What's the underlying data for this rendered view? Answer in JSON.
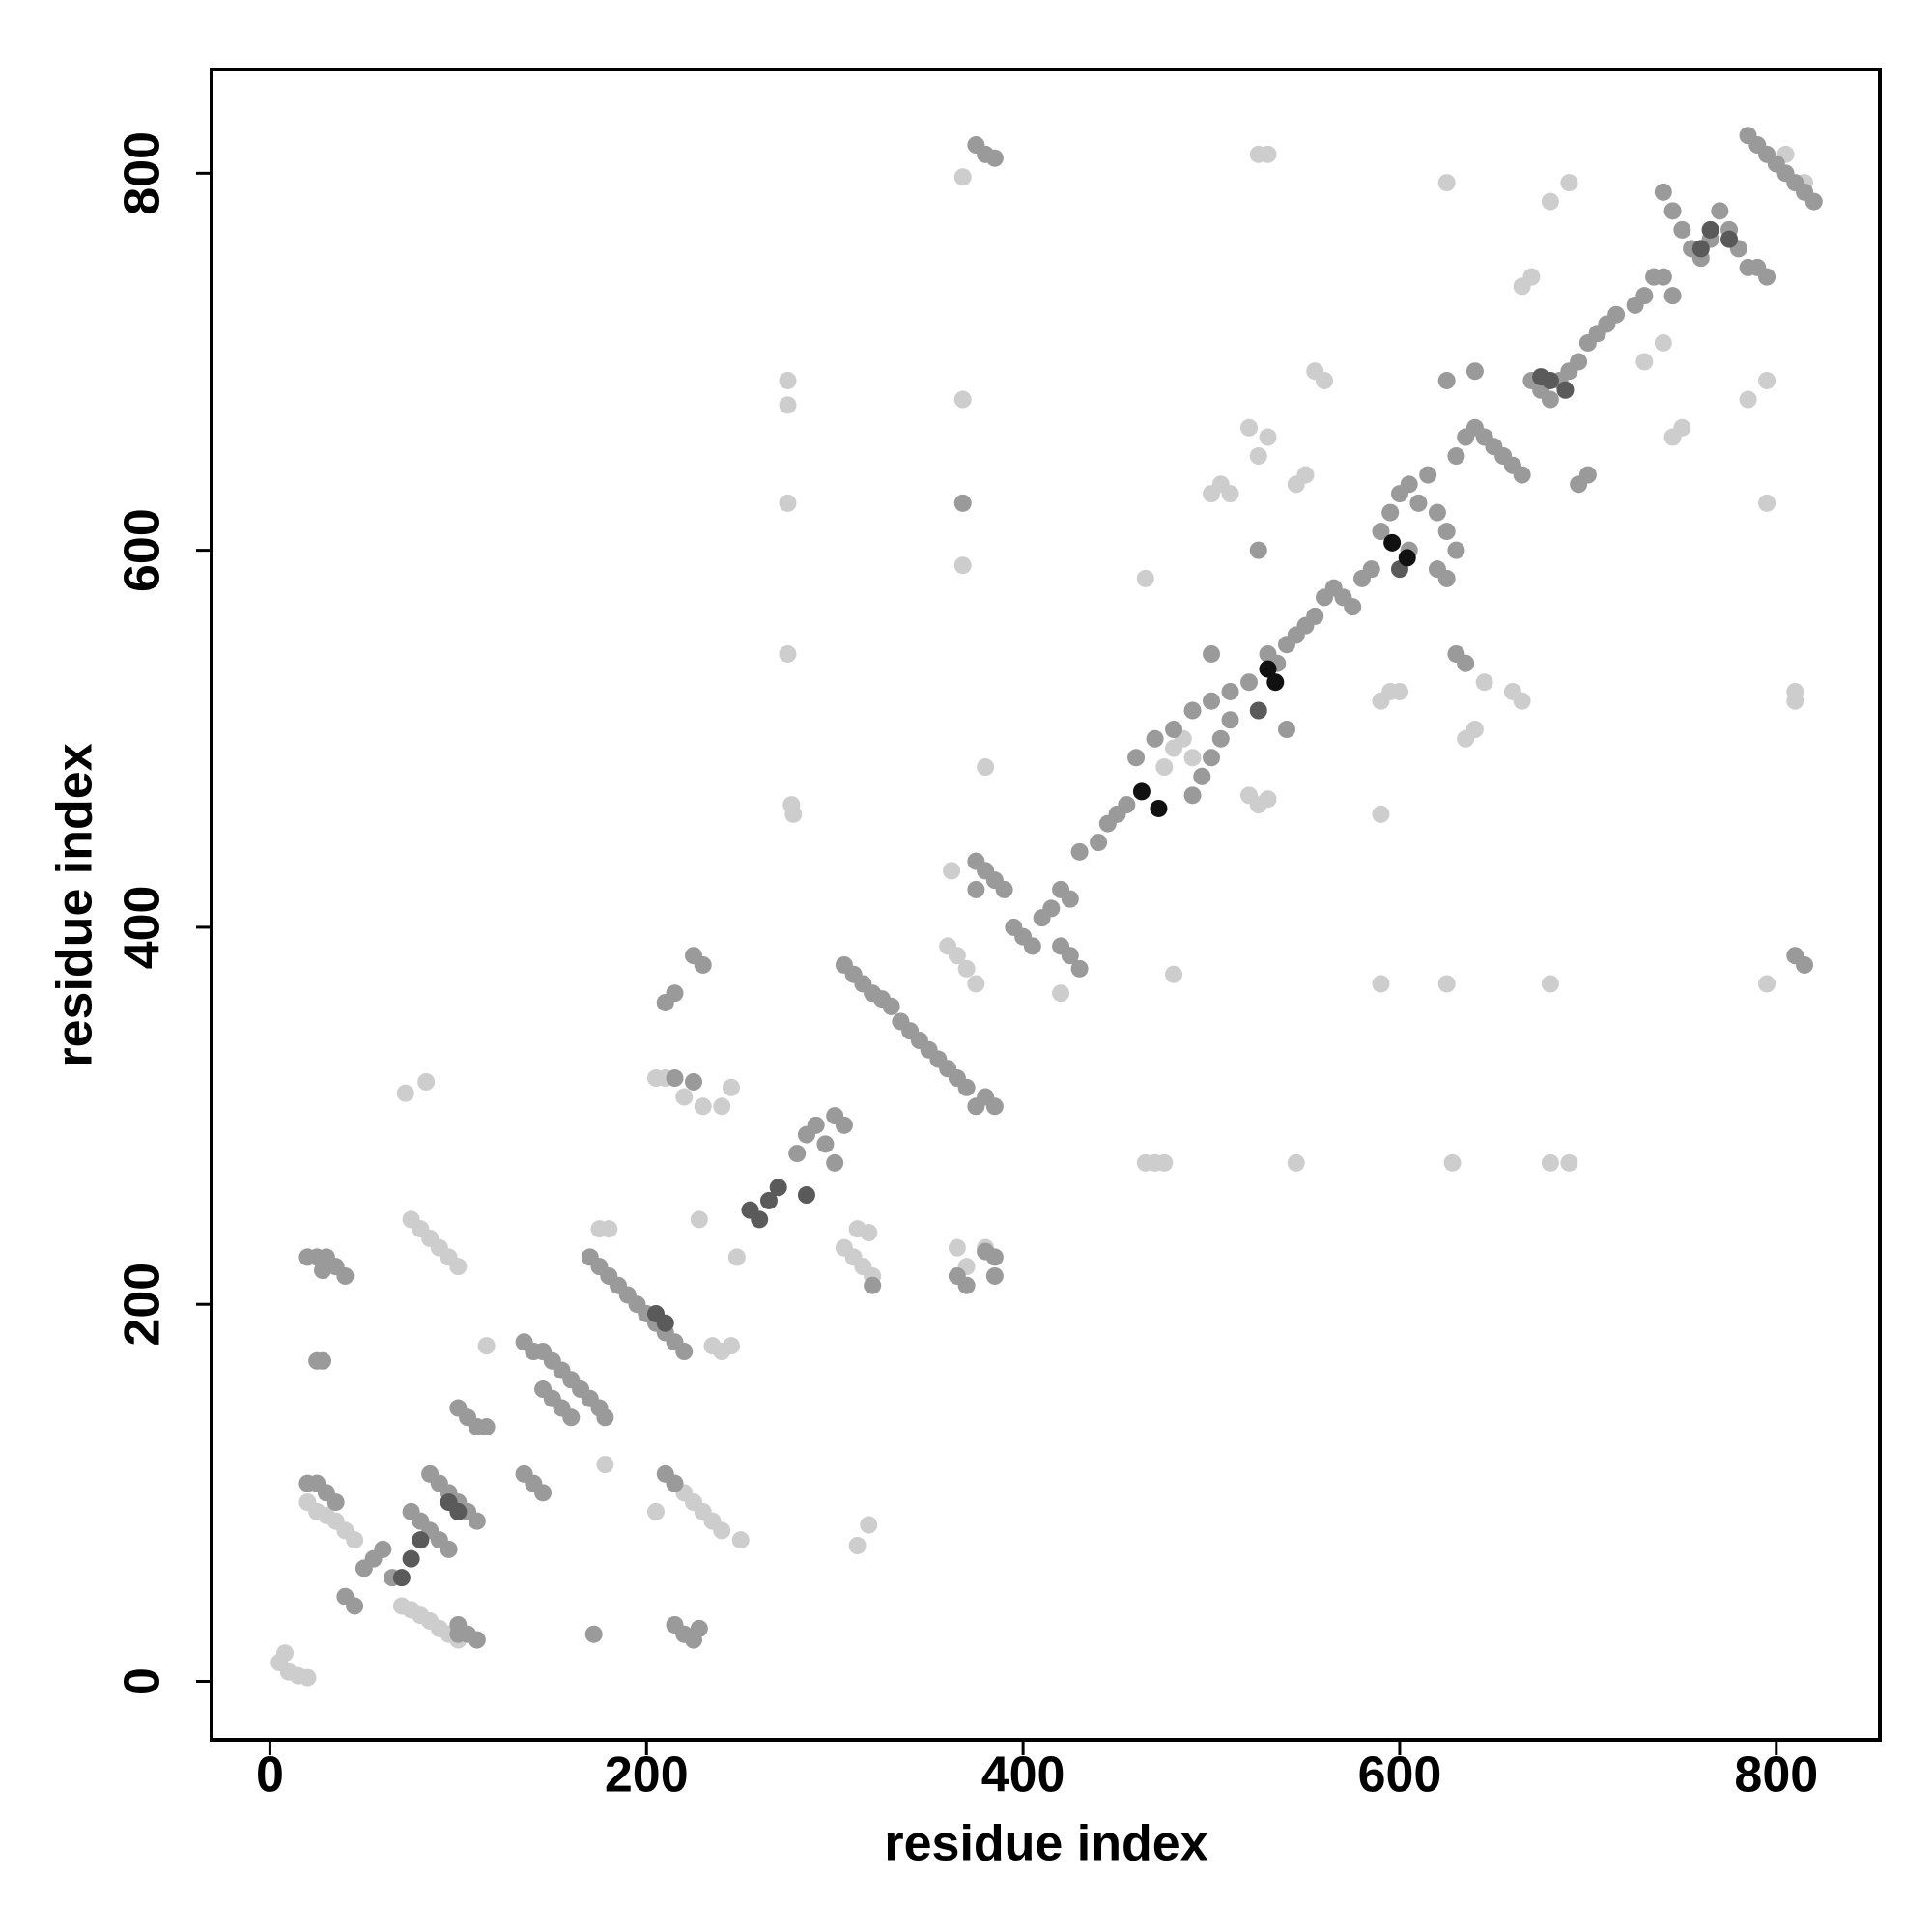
{
  "chart_data": {
    "type": "scatter",
    "x_label": "residue index",
    "y_label": "residue index",
    "xlim": [
      -31,
      855
    ],
    "ylim": [
      -31,
      855
    ],
    "xticks": [
      0,
      200,
      400,
      600,
      800
    ],
    "yticks": [
      0,
      200,
      400,
      600,
      800
    ],
    "grid": false,
    "series": [
      {
        "color": "#cdcdcd",
        "x": [
          5,
          10,
          15,
          20,
          8,
          20,
          25,
          30,
          35,
          40,
          45,
          75,
          80,
          85,
          90,
          95,
          100,
          70,
          75,
          80,
          85,
          90,
          95,
          100,
          72,
          83,
          115,
          175,
          180,
          178,
          205,
          215,
          220,
          225,
          230,
          235,
          240,
          250,
          205,
          210,
          220,
          230,
          240,
          245,
          235,
          245,
          240,
          248,
          228,
          312,
          318,
          305,
          310,
          315,
          320,
          312,
          318,
          275,
          275,
          275,
          275,
          277,
          278,
          368,
          368,
          368,
          365,
          380,
          370,
          360,
          365,
          370,
          375,
          362,
          380,
          420,
          480,
          465,
          470,
          475,
          465,
          500,
          505,
          510,
          525,
          530,
          520,
          525,
          530,
          520,
          525,
          530,
          545,
          550,
          545,
          555,
          560,
          590,
          595,
          600,
          590,
          625,
          680,
          628,
          680,
          690,
          625,
          690,
          680,
          665,
          670,
          660,
          665,
          635,
          640,
          645,
          745,
          750,
          730,
          740,
          810,
          810,
          795,
          795,
          795,
          785,
          805,
          815,
          590,
          485,
          490,
          495,
          480,
          475
        ],
        "values": [
          10,
          5,
          3,
          2,
          15,
          95,
          90,
          88,
          85,
          80,
          75,
          245,
          240,
          235,
          230,
          225,
          220,
          40,
          38,
          35,
          32,
          28,
          25,
          22,
          312,
          318,
          178,
          240,
          240,
          115,
          90,
          105,
          100,
          95,
          90,
          85,
          80,
          75,
          320,
          320,
          310,
          305,
          305,
          315,
          178,
          178,
          175,
          225,
          245,
          72,
          83,
          230,
          225,
          220,
          215,
          240,
          238,
          690,
          677,
          625,
          545,
          465,
          460,
          798,
          592,
          680,
          230,
          230,
          220,
          390,
          385,
          378,
          370,
          430,
          485,
          365,
          375,
          275,
          275,
          275,
          585,
          630,
          635,
          630,
          810,
          810,
          665,
          650,
          660,
          470,
          465,
          468,
          275,
          640,
          635,
          695,
          690,
          520,
          525,
          525,
          370,
          370,
          370,
          275,
          275,
          275,
          795,
          795,
          785,
          740,
          745,
          525,
          520,
          500,
          505,
          530,
          660,
          665,
          700,
          710,
          520,
          525,
          370,
          690,
          625,
          680,
          810,
          795,
          460,
          500,
          490,
          480,
          495,
          485
        ]
      },
      {
        "color": "#9a9a9a",
        "x": [
          25,
          30,
          35,
          40,
          20,
          28,
          25,
          28,
          20,
          25,
          30,
          35,
          40,
          45,
          50,
          55,
          60,
          65,
          75,
          80,
          85,
          90,
          95,
          85,
          90,
          95,
          100,
          105,
          110,
          100,
          105,
          110,
          115,
          100,
          105,
          110,
          100,
          135,
          140,
          145,
          150,
          155,
          160,
          165,
          170,
          175,
          178,
          135,
          140,
          145,
          145,
          150,
          155,
          160,
          170,
          175,
          180,
          185,
          190,
          195,
          200,
          205,
          210,
          215,
          220,
          172,
          210,
          215,
          215,
          220,
          225,
          228,
          210,
          215,
          225,
          230,
          215,
          225,
          280,
          285,
          290,
          295,
          300,
          305,
          300,
          305,
          310,
          315,
          320,
          325,
          330,
          335,
          340,
          345,
          350,
          355,
          360,
          365,
          320,
          365,
          370,
          375,
          380,
          385,
          368,
          375,
          380,
          385,
          390,
          375,
          380,
          385,
          375,
          370,
          380,
          385,
          385,
          395,
          400,
          405,
          410,
          415,
          420,
          425,
          420,
          425,
          430,
          430,
          440,
          445,
          450,
          455,
          460,
          470,
          480,
          490,
          500,
          510,
          520,
          490,
          495,
          500,
          505,
          510,
          500,
          530,
          535,
          540,
          545,
          550,
          555,
          560,
          565,
          570,
          575,
          580,
          585,
          540,
          525,
          590,
          595,
          600,
          605,
          610,
          615,
          620,
          625,
          630,
          605,
          620,
          625,
          630,
          635,
          640,
          645,
          650,
          655,
          660,
          665,
          625,
          640,
          670,
          675,
          680,
          685,
          690,
          695,
          700,
          705,
          710,
          715,
          700,
          695,
          730,
          735,
          740,
          745,
          725,
          740,
          745,
          750,
          755,
          760,
          765,
          770,
          775,
          780,
          785,
          790,
          795,
          785,
          790,
          795,
          800,
          805,
          810,
          815,
          820,
          810,
          815,
          630,
          635
        ],
        "values": [
          225,
          225,
          220,
          215,
          225,
          218,
          170,
          170,
          105,
          105,
          100,
          95,
          45,
          40,
          60,
          65,
          70,
          55,
          90,
          85,
          80,
          75,
          70,
          110,
          105,
          100,
          95,
          90,
          85,
          145,
          140,
          135,
          135,
          30,
          25,
          22,
          25,
          180,
          175,
          175,
          170,
          165,
          160,
          155,
          150,
          145,
          140,
          110,
          105,
          100,
          155,
          150,
          145,
          140,
          225,
          220,
          215,
          210,
          205,
          200,
          195,
          190,
          185,
          180,
          175,
          25,
          110,
          105,
          30,
          25,
          22,
          28,
          360,
          365,
          385,
          380,
          320,
          318,
          280,
          290,
          295,
          285,
          300,
          295,
          275,
          380,
          375,
          370,
          365,
          362,
          358,
          350,
          345,
          340,
          335,
          330,
          325,
          320,
          210,
          215,
          210,
          815,
          810,
          808,
          625,
          435,
          430,
          425,
          420,
          420,
          310,
          305,
          305,
          315,
          228,
          225,
          215,
          400,
          395,
          390,
          405,
          410,
          420,
          415,
          390,
          385,
          378,
          440,
          445,
          455,
          460,
          465,
          490,
          500,
          505,
          515,
          520,
          525,
          530,
          470,
          480,
          490,
          500,
          510,
          545,
          545,
          540,
          550,
          555,
          560,
          565,
          575,
          580,
          575,
          570,
          585,
          590,
          505,
          600,
          610,
          620,
          630,
          635,
          625,
          640,
          620,
          610,
          600,
          600,
          590,
          585,
          650,
          660,
          665,
          660,
          655,
          650,
          645,
          640,
          690,
          695,
          690,
          685,
          680,
          690,
          695,
          700,
          710,
          715,
          720,
          725,
          640,
          635,
          735,
          745,
          745,
          735,
          730,
          790,
          780,
          770,
          760,
          755,
          765,
          780,
          770,
          760,
          750,
          750,
          745,
          820,
          815,
          810,
          805,
          800,
          795,
          790,
          785,
          385,
          380,
          545,
          540
        ]
      },
      {
        "color": "#5a5a5a",
        "x": [
          75,
          80,
          70,
          95,
          100,
          210,
          205,
          255,
          260,
          265,
          270,
          285,
          525,
          680,
          688,
          675,
          765,
          775,
          600,
          760
        ],
        "values": [
          65,
          75,
          55,
          95,
          90,
          190,
          195,
          250,
          245,
          255,
          262,
          258,
          515,
          690,
          685,
          692,
          770,
          765,
          590,
          760
        ]
      },
      {
        "color": "#111111",
        "x": [
          463,
          472,
          596,
          604,
          530,
          534
        ],
        "values": [
          472,
          463,
          604,
          596,
          537,
          530
        ]
      }
    ]
  }
}
